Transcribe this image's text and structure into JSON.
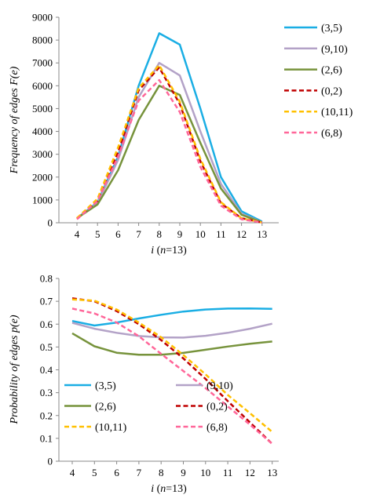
{
  "chart_data": [
    {
      "type": "line",
      "xlabel": "i (n=13)",
      "ylabel": "Frequency of edges F(e)",
      "x": [
        4,
        5,
        6,
        7,
        8,
        9,
        10,
        11,
        12,
        13
      ],
      "ylim": [
        0,
        9000
      ],
      "yticks": [
        0,
        1000,
        2000,
        3000,
        4000,
        5000,
        6000,
        7000,
        8000,
        9000
      ],
      "grid": false,
      "legend_position": "right",
      "series": [
        {
          "name": "(3,5)",
          "color": "#1aaee4",
          "dashed": false,
          "values": [
            200,
            900,
            2900,
            6000,
            8300,
            7800,
            5000,
            2000,
            500,
            50
          ]
        },
        {
          "name": "(9,10)",
          "color": "#b3a2c7",
          "dashed": false,
          "values": [
            200,
            850,
            2750,
            5500,
            7000,
            6450,
            4000,
            1700,
            400,
            20
          ]
        },
        {
          "name": "(2,6)",
          "color": "#77933c",
          "dashed": false,
          "values": [
            200,
            800,
            2300,
            4500,
            6000,
            5600,
            3500,
            1500,
            350,
            20
          ]
        },
        {
          "name": "(0,2)",
          "color": "#c00000",
          "dashed": true,
          "values": [
            200,
            950,
            3100,
            5800,
            6800,
            5200,
            2700,
            850,
            200,
            10
          ]
        },
        {
          "name": "(10,11)",
          "color": "#ffc000",
          "dashed": true,
          "values": [
            200,
            1050,
            3300,
            5900,
            6900,
            5300,
            2800,
            900,
            200,
            10
          ]
        },
        {
          "name": "(6,8)",
          "color": "#ff6699",
          "dashed": true,
          "values": [
            150,
            950,
            2900,
            5350,
            6250,
            4850,
            2450,
            750,
            150,
            10
          ]
        }
      ]
    },
    {
      "type": "line",
      "xlabel": "i (n=13)",
      "ylabel": "Probability of edges p(e)",
      "x": [
        4,
        5,
        6,
        7,
        8,
        9,
        10,
        11,
        12,
        13
      ],
      "ylim": [
        0,
        0.8
      ],
      "yticks": [
        "0",
        "0.1",
        "0.2",
        "0.3",
        "0.4",
        "0.5",
        "0.6",
        "0.7",
        "0.8"
      ],
      "grid": false,
      "legend_position": "bottom-left",
      "series": [
        {
          "name": "(3,5)",
          "color": "#1aaee4",
          "dashed": false,
          "values": [
            0.614,
            0.594,
            0.607,
            0.625,
            0.641,
            0.655,
            0.664,
            0.668,
            0.669,
            0.667
          ]
        },
        {
          "name": "(9,10)",
          "color": "#b3a2c7",
          "dashed": false,
          "values": [
            0.606,
            0.58,
            0.562,
            0.548,
            0.542,
            0.541,
            0.549,
            0.562,
            0.58,
            0.602
          ]
        },
        {
          "name": "(2,6)",
          "color": "#77933c",
          "dashed": false,
          "values": [
            0.56,
            0.503,
            0.475,
            0.466,
            0.466,
            0.474,
            0.488,
            0.502,
            0.514,
            0.524
          ]
        },
        {
          "name": "(0,2)",
          "color": "#c00000",
          "dashed": true,
          "values": [
            0.713,
            0.7,
            0.657,
            0.6,
            0.53,
            0.45,
            0.36,
            0.263,
            0.17,
            0.076
          ]
        },
        {
          "name": "(10,11)",
          "color": "#ffc000",
          "dashed": true,
          "values": [
            0.708,
            0.703,
            0.664,
            0.607,
            0.543,
            0.465,
            0.38,
            0.29,
            0.21,
            0.128
          ]
        },
        {
          "name": "(6,8)",
          "color": "#ff6699",
          "dashed": true,
          "values": [
            0.668,
            0.647,
            0.607,
            0.547,
            0.47,
            0.395,
            0.32,
            0.24,
            0.16,
            0.076
          ]
        }
      ]
    }
  ]
}
